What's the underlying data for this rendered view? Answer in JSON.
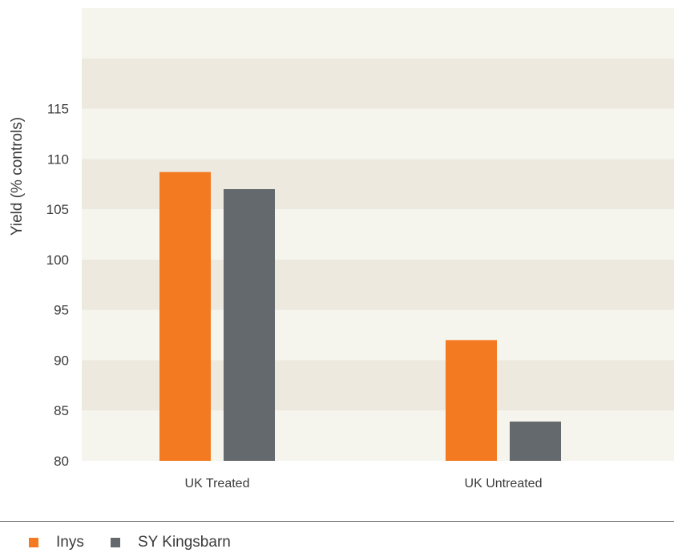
{
  "chart_data": {
    "type": "bar",
    "title": "",
    "xlabel": "",
    "ylabel": "Yield (% controls)",
    "ylim": [
      80,
      125
    ],
    "yticks": [
      80,
      85,
      90,
      95,
      100,
      105,
      110,
      115
    ],
    "categories": [
      "UK Treated",
      "UK Untreated"
    ],
    "series": [
      {
        "name": "Inys",
        "color": "#f37a21",
        "values": [
          108.7,
          92.0
        ]
      },
      {
        "name": "SY Kingsbarn",
        "color": "#63696c",
        "values": [
          107.0,
          83.9
        ]
      }
    ],
    "grid": true,
    "band_colors": [
      "#f5f4ed",
      "#ede9de"
    ],
    "legend_position": "bottom-left"
  }
}
